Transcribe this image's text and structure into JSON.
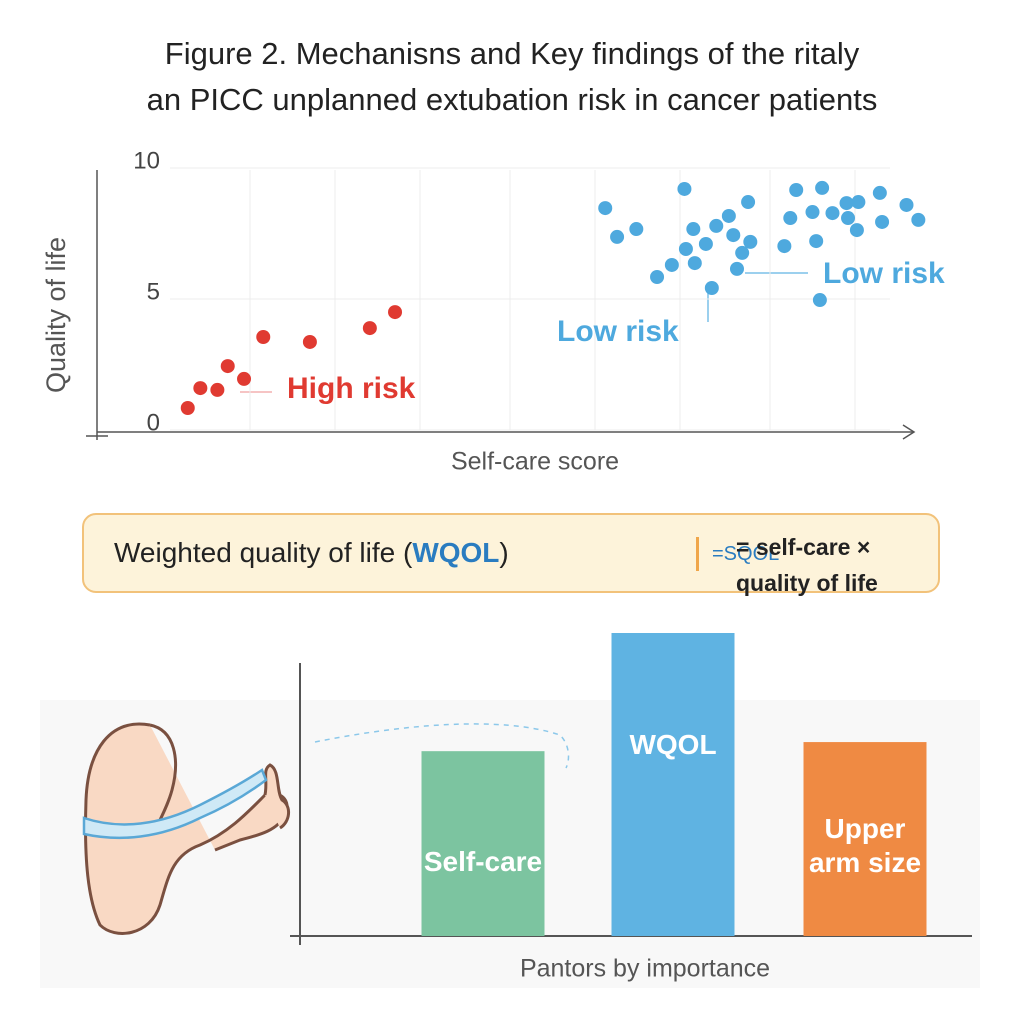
{
  "title": [
    "Figure 2.  Mechanisns and Key findings of the ritaly",
    "an PICC unplanned extubation risk in cancer patients"
  ],
  "chart_data": [
    {
      "type": "scatter",
      "xlabel": "Self-care score",
      "ylabel": "Quality of life",
      "xlim": [
        0,
        10.2
      ],
      "ylim": [
        0,
        10
      ],
      "yticks": [
        0,
        5,
        10
      ],
      "grid": true,
      "series": [
        {
          "color": "#e03a31",
          "x": [
            0.24,
            0.41,
            0.64,
            0.78,
            1.0,
            1.26,
            1.89,
            2.7,
            3.04
          ],
          "y": [
            0.84,
            1.6,
            1.53,
            2.44,
            1.95,
            3.55,
            3.36,
            3.89,
            4.5
          ]
        },
        {
          "color": "#4ea9de",
          "x": [
            5.88,
            6.04,
            6.3,
            6.95,
            7.07,
            7.38,
            7.55,
            7.81,
            6.97,
            7.24,
            7.61,
            7.84,
            6.78,
            6.58,
            7.09,
            7.66,
            7.73,
            7.32,
            8.46,
            8.81,
            8.38,
            8.68,
            8.95,
            9.14,
            9.3,
            9.16,
            9.59,
            9.95,
            10.11,
            8.3,
            8.73,
            9.28,
            9.62,
            8.78
          ],
          "y": [
            8.47,
            7.37,
            7.67,
            9.2,
            7.67,
            7.79,
            8.17,
            8.7,
            6.91,
            7.1,
            7.44,
            7.18,
            6.3,
            5.84,
            6.37,
            6.15,
            6.76,
            5.42,
            9.16,
            9.24,
            8.09,
            8.32,
            8.28,
            8.66,
            8.7,
            8.09,
            9.05,
            8.59,
            8.02,
            7.02,
            7.21,
            7.63,
            7.94,
            4.96
          ]
        }
      ],
      "annotations": [
        "High risk",
        "Low risk",
        "Low risk"
      ]
    },
    {
      "type": "bar",
      "xlabel": "Pantors by importance",
      "categories": [
        "Self-care",
        "WQOL",
        "Upper arm size"
      ],
      "values": [
        61,
        100,
        64
      ],
      "colors": [
        "#7cc4a0",
        "#5fb3e2",
        "#ef8a43"
      ],
      "ylim": [
        0,
        100
      ]
    }
  ],
  "formula": {
    "lead": "Weighted quality of life (",
    "abbr": "WQOL",
    "close": ")",
    "small": "=SQOL",
    "rhs": [
      "= self-care ×",
      "quality of life"
    ]
  }
}
